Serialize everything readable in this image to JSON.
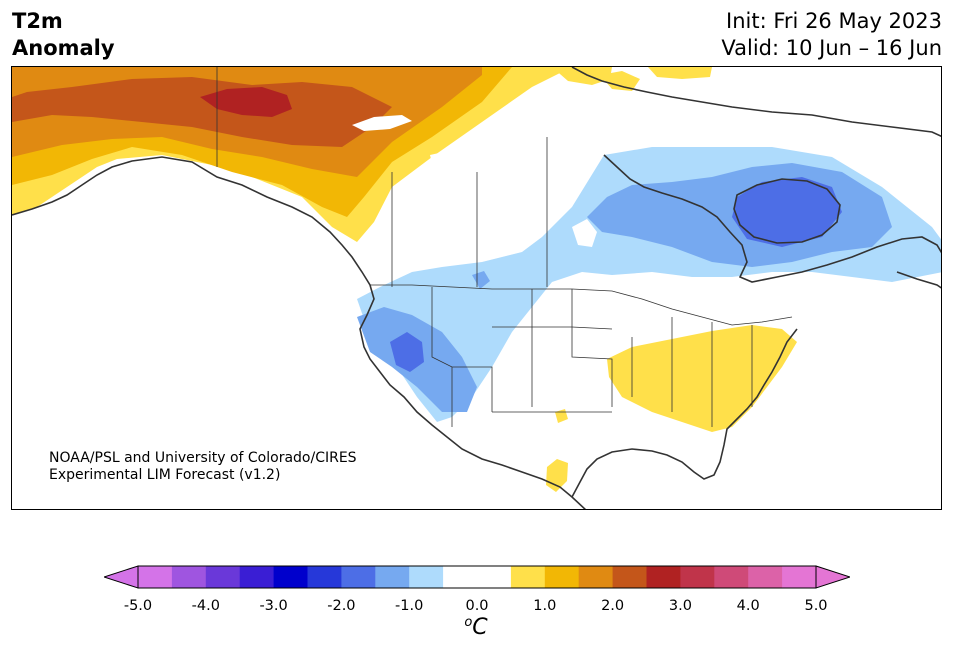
{
  "header": {
    "variable": "T2m",
    "subtitle": "Anomaly",
    "init": "Init: Fri 26 May 2023",
    "valid": "Valid: 10 Jun – 16 Jun"
  },
  "credit": {
    "line1": "NOAA/PSL and University of Colorado/CIRES",
    "line2": "Experimental LIM Forecast (v1.2)"
  },
  "colorbar": {
    "unit_sup": "o",
    "unit": "C",
    "tick_labels": [
      "-5.0",
      "-4.0",
      "-3.0",
      "-2.0",
      "-1.0",
      "0.0",
      "1.0",
      "2.0",
      "3.0",
      "4.0",
      "5.0"
    ],
    "range": [
      -5.0,
      5.0
    ],
    "step": 0.5,
    "colors": [
      "#d473e8",
      "#9f55e0",
      "#6a38d9",
      "#3a1ed4",
      "#0000cc",
      "#2638d9",
      "#4d6ee6",
      "#76a9f0",
      "#aedbfc",
      "#ffffff",
      "#ffffff",
      "#ffe04a",
      "#f2b705",
      "#e08a12",
      "#c4561a",
      "#b02222",
      "#c0344a",
      "#cf4a78",
      "#dc62a8",
      "#e475d4"
    ],
    "under_color": "#d473e8",
    "over_color": "#e475d4"
  },
  "map": {
    "region": "North America",
    "anomaly_colors": {
      "warm_1": "#ffe04a",
      "warm_2": "#f2b705",
      "warm_3": "#e08a12",
      "warm_4": "#c4561a",
      "warm_5": "#b02222",
      "cool_1": "#aedbfc",
      "cool_2": "#76a9f0",
      "cool_3": "#4d6ee6"
    }
  }
}
